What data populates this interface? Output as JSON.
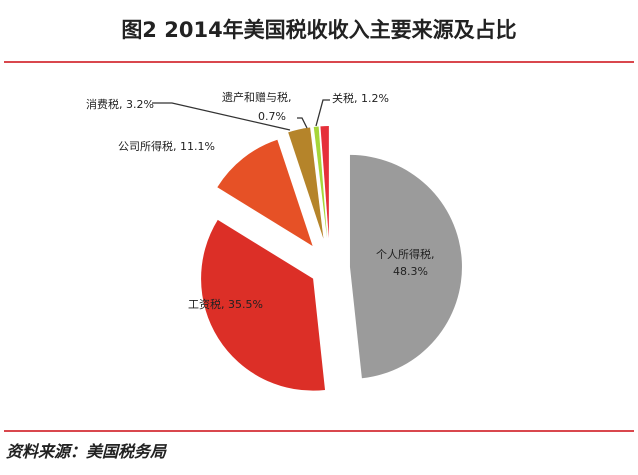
{
  "title": "图2 2014年美国税收收入主要来源及占比",
  "source": "资料来源：美国税务局",
  "chart_data": {
    "type": "pie",
    "title": "图2 2014年美国税收收入主要来源及占比",
    "exploded": true,
    "start": "12 o'clock, clockwise",
    "slices": [
      {
        "name": "个人所得税",
        "value": 48.3,
        "label": "个人所得税,",
        "pct": "48.3%",
        "color": "#9b9b9b"
      },
      {
        "name": "工资税",
        "value": 35.5,
        "label": "工资税, 35.5%",
        "color": "#dc2f27"
      },
      {
        "name": "公司所得税",
        "value": 11.1,
        "label": "公司所得税, 11.1%",
        "color": "#e65126"
      },
      {
        "name": "消费税",
        "value": 3.2,
        "label": "消费税, 3.2%",
        "color": "#b5842a"
      },
      {
        "name": "遗产和赠与税",
        "value": 0.7,
        "label": "遗产和赠与税,",
        "pct": "0.7%",
        "color": "#a6d63a"
      },
      {
        "name": "关税",
        "value": 1.2,
        "label": "关税, 1.2%",
        "color": "#e5303a"
      }
    ]
  }
}
